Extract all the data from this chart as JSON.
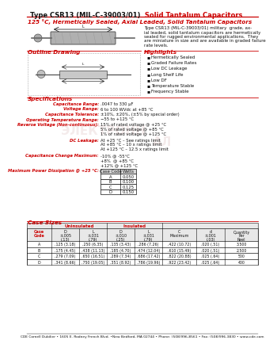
{
  "title_black": "Type CSR13 (MIL-C-39003/01)",
  "title_red": " Solid Tantalum Capacitors",
  "subtitle": "125 °C, Hermetically Sealed, Axial Leaded, Solid Tantalum Capacitors",
  "description": "Type CSR13 (MIL-C-39003/01) military  grade, ax-\nial leaded, solid tantalum capacitors are hermetically\nsealed for rugged environmental applications.  They\nare miniature in size and are available in graded failure\nrate levels.",
  "outline_drawing_label": "Outline Drawing",
  "highlights_label": "Highlights",
  "highlights": [
    "Hermetically Sealed",
    "Graded Failure Rates",
    "Low DC Leakage",
    "Long Shelf Life",
    "Low DF",
    "Temperature Stable",
    "Frequency Stable"
  ],
  "specs_label": "Specifications",
  "specs": [
    [
      "Capacitance Range:",
      ".0047 to 330 μF"
    ],
    [
      "Voltage Range:",
      "6 to 100 WVdc at +85 °C"
    ],
    [
      "Capacitance Tolerance:",
      "±10%, ±20%, (±5% by special order)"
    ],
    [
      "Operating Temperature Range:",
      "−55 to +125 °C"
    ],
    [
      "Reverse Voltage (Non-continuous):",
      "15% of rated voltage @ +25 °C\n5% of rated voltage @ +85 °C\n1% of rated voltage @ +125 °C"
    ],
    [
      "DC Leakage:",
      "At +25 °C – See ratings limit\nAt +85 °C – 10 x ratings limit\nAt +125 °C – 12.5 x ratings limit"
    ],
    [
      "Capacitance Change Maximum:",
      "-10% @ -55°C\n+8%  @ +85 °C\n+12% @ +125 °C"
    ],
    [
      "Maximum Power Dissipation @ +25 °C:",
      "TABLE"
    ]
  ],
  "power_table_headers": [
    "Case Code",
    "Watts"
  ],
  "power_table_data": [
    [
      "A",
      "0.050"
    ],
    [
      "B",
      "0.100"
    ],
    [
      "C",
      "0.125"
    ],
    [
      "D",
      "0.150"
    ]
  ],
  "case_sizes_label": "Case Sizes",
  "case_table_col_headers": [
    "Case\nCode",
    "D\n±.005\n(.13)",
    "L\n±.031\n(.79)",
    "D\n±.010\n(.25)",
    "L\n±.031\n(.79)",
    "C\nMaximum",
    "d\n±.001\n(.03)",
    "Quantity\nPer\nReel"
  ],
  "case_table_data": [
    [
      "A",
      ".125 (3.18)",
      ".250 (6.35)",
      ".135 (3.43)",
      ".286 (7.26)",
      ".422 (10.72)",
      ".020 (.51)",
      "3,500"
    ],
    [
      "B",
      ".175 (4.45)",
      ".438 (11.13)",
      ".185 (4.70)",
      ".474 (12.04)",
      ".610 (15.49)",
      ".020 (.51)",
      "2,500"
    ],
    [
      "C",
      ".279 (7.09)",
      ".650 (16.51)",
      ".289 (7.34)",
      ".686 (17.42)",
      ".822 (20.88)",
      ".025 (.64)",
      "500"
    ],
    [
      "D",
      ".341 (8.66)",
      ".750 (19.05)",
      ".351 (8.92)",
      ".786 (19.96)",
      ".922 (23.42)",
      ".025 (.64)",
      "400"
    ]
  ],
  "footer": "CDE Cornell Dubilier • 1605 E. Rodney French Blvd. •New Bedford, MA 02744 • Phone: (508)996-8561 • Fax: (508)996-3830 • www.cde.com",
  "red_color": "#cc0000",
  "bg_color": "#ffffff"
}
